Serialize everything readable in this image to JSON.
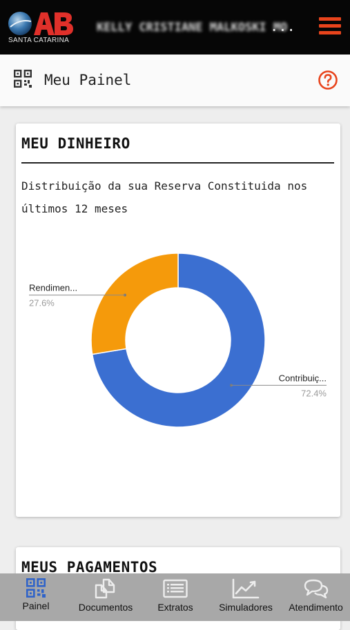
{
  "header": {
    "logo_text": "OAB",
    "logo_subtitle": "SANTA CATARINA",
    "user_name": "KELLY CRISTIANE MALKOSKI MO",
    "user_ellipsis": "...",
    "menu_icon": "hamburger-icon",
    "accent_color": "#e8441c"
  },
  "page": {
    "title": "Meu Painel",
    "qr_icon": "qr-code-icon",
    "help_icon": "help-circle-icon"
  },
  "card_money": {
    "title": "MEU DINHEIRO",
    "description": "Distribuição da sua Reserva Constituida nos últimos 12 meses"
  },
  "chart_data": {
    "type": "pie",
    "donut": true,
    "slices": [
      {
        "label": "Contribuiç...",
        "value": 72.4,
        "value_label": "72.4%",
        "color": "#3b6fd1"
      },
      {
        "label": "Rendimen...",
        "value": 27.6,
        "value_label": "27.6%",
        "color": "#f59a0b"
      }
    ]
  },
  "card_payments": {
    "title": "MEUS PAGAMENTOS"
  },
  "bottom_nav": [
    {
      "label": "Painel",
      "icon": "qr-code-icon",
      "active": true
    },
    {
      "label": "Documentos",
      "icon": "documents-icon",
      "active": false
    },
    {
      "label": "Extratos",
      "icon": "statement-list-icon",
      "active": false
    },
    {
      "label": "Simuladores",
      "icon": "line-chart-icon",
      "active": false
    },
    {
      "label": "Atendimento",
      "icon": "chat-bubbles-icon",
      "active": false
    }
  ]
}
